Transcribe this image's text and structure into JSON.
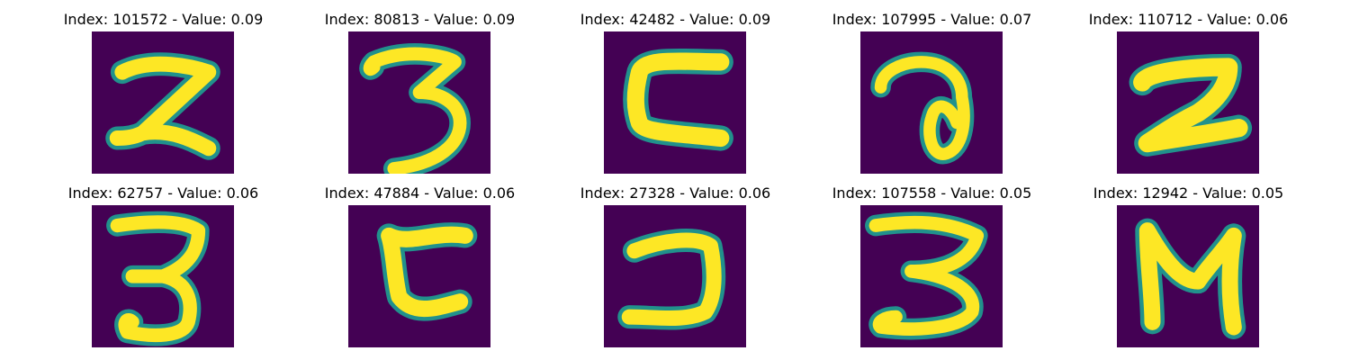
{
  "colors": {
    "background": "#440154",
    "edge": "#21918c",
    "stroke": "#fde725"
  },
  "panels": [
    {
      "title": "Index: 101572 - Value: 0.09",
      "glyph": "glyph-2-like"
    },
    {
      "title": "Index: 80813 - Value: 0.09",
      "glyph": "glyph-3"
    },
    {
      "title": "Index: 42482 - Value: 0.09",
      "glyph": "glyph-c-like"
    },
    {
      "title": "Index: 107995 - Value: 0.07",
      "glyph": "glyph-loop"
    },
    {
      "title": "Index: 110712 - Value: 0.06",
      "glyph": "glyph-2-bold"
    },
    {
      "title": "Index: 62757 - Value: 0.06",
      "glyph": "glyph-3-tall"
    },
    {
      "title": "Index: 47884 - Value: 0.06",
      "glyph": "glyph-c-wavy"
    },
    {
      "title": "Index: 27328 - Value: 0.06",
      "glyph": "glyph-reversed-c"
    },
    {
      "title": "Index: 107558 - Value: 0.05",
      "glyph": "glyph-3-wide"
    },
    {
      "title": "Index: 12942 - Value: 0.05",
      "glyph": "glyph-n-like"
    }
  ]
}
